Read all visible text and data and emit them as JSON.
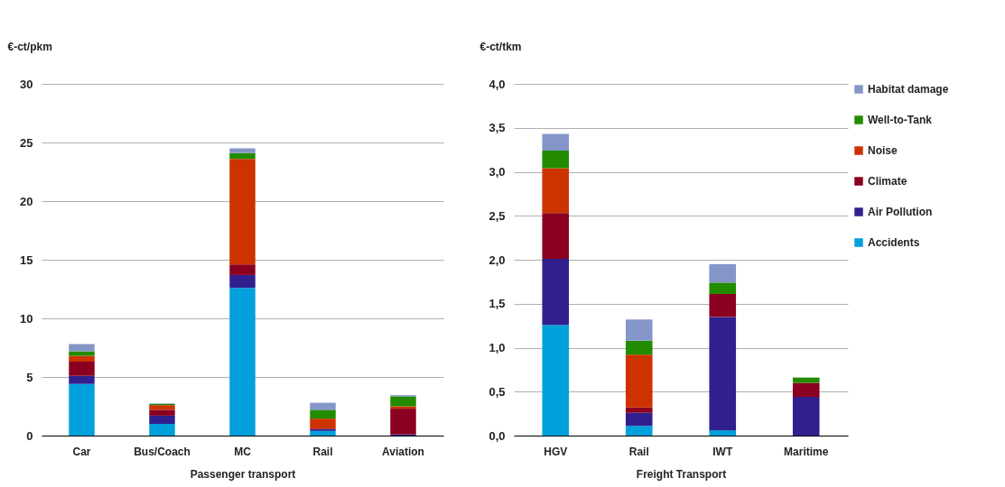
{
  "chart_data": [
    {
      "type": "bar",
      "stacked": true,
      "ylabel": "€-ct/pkm",
      "xlabel": "Passenger transport",
      "categories": [
        "Car",
        "Bus/Coach",
        "MC",
        "Rail",
        "Aviation"
      ],
      "ylim": [
        0,
        30
      ],
      "yticks": [
        0,
        5,
        10,
        15,
        20,
        25,
        30
      ],
      "grid": "y",
      "series": [
        {
          "color": "#00a0dc",
          "values": [
            4.4,
            1.0,
            12.6,
            0.4,
            0
          ]
        },
        {
          "color": "#30208f",
          "values": [
            0.7,
            0.7,
            1.1,
            0.15,
            0.1
          ]
        },
        {
          "color": "#8a0020",
          "values": [
            1.2,
            0.5,
            0.9,
            0.05,
            2.2
          ]
        },
        {
          "color": "#cc3300",
          "values": [
            0.5,
            0.4,
            9.0,
            0.85,
            0.2
          ]
        },
        {
          "color": "#228b00",
          "values": [
            0.4,
            0.1,
            0.5,
            0.75,
            0.85
          ]
        },
        {
          "color": "#8496c8",
          "values": [
            0.6,
            0.05,
            0.4,
            0.6,
            0.1
          ]
        }
      ]
    },
    {
      "type": "bar",
      "stacked": true,
      "ylabel": "€-ct/tkm",
      "xlabel": "Freight Transport",
      "categories": [
        "HGV",
        "Rail",
        "IWT",
        "Maritime"
      ],
      "ylim": [
        0,
        4
      ],
      "yticks": [
        {
          "value": 0,
          "label": "0,0"
        },
        {
          "value": 0.5,
          "label": "0,5"
        },
        {
          "value": 1,
          "label": "1,0"
        },
        {
          "value": 1.5,
          "label": "1,5"
        },
        {
          "value": 2,
          "label": "2,0"
        },
        {
          "value": 2.5,
          "label": "2,5"
        },
        {
          "value": 3,
          "label": "3,0"
        },
        {
          "value": 3.5,
          "label": "3,5"
        },
        {
          "value": 4,
          "label": "4,0"
        }
      ],
      "grid": "y",
      "legend": "right",
      "series": [
        {
          "name": "Accidents",
          "color": "#00a0dc",
          "values": [
            1.26,
            0.11,
            0.06,
            0
          ]
        },
        {
          "name": "Air Pollution",
          "color": "#30208f",
          "values": [
            0.75,
            0.15,
            1.29,
            0.44
          ]
        },
        {
          "name": "Climate",
          "color": "#8a0020",
          "values": [
            0.52,
            0.06,
            0.26,
            0.16
          ]
        },
        {
          "name": "Noise",
          "color": "#cc3300",
          "values": [
            0.51,
            0.6,
            0,
            0
          ]
        },
        {
          "name": "Well-to-Tank",
          "color": "#228b00",
          "values": [
            0.2,
            0.16,
            0.13,
            0.06
          ]
        },
        {
          "name": "Habitat damage",
          "color": "#8496c8",
          "values": [
            0.19,
            0.24,
            0.21,
            0
          ]
        }
      ]
    }
  ]
}
